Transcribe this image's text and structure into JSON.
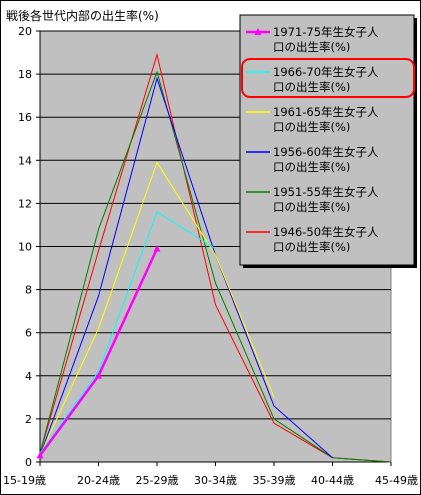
{
  "chart_data": {
    "type": "line",
    "title": "戦後各世代内部の出生率(%)",
    "categories": [
      "15-19歳",
      "20-24歳",
      "25-29歳",
      "30-34歳",
      "35-39歳",
      "40-44歳",
      "45-49歳"
    ],
    "ylim": [
      0,
      20
    ],
    "yticks": [
      0,
      2,
      4,
      6,
      8,
      10,
      12,
      14,
      16,
      18,
      20
    ],
    "grid": true,
    "legend_position": "top-right",
    "series": [
      {
        "name": "1971-75年生女子人口の出生率(%)",
        "color": "#ff00ff",
        "marker": "triangle",
        "values": [
          0.3,
          4.0,
          9.9,
          null,
          null,
          null,
          null
        ]
      },
      {
        "name": "1966-70年生女子人口の出生率(%)",
        "color": "#00ffff",
        "marker": "none",
        "highlighted": true,
        "values": [
          0.4,
          4.2,
          11.6,
          9.9,
          null,
          null,
          null
        ]
      },
      {
        "name": "1961-65年生女子人口の出生率(%)",
        "color": "#ffff00",
        "marker": "none",
        "values": [
          0.3,
          6.2,
          13.9,
          9.6,
          3.0,
          null,
          null
        ]
      },
      {
        "name": "1956-60年生女子人口の出生率(%)",
        "color": "#0000ff",
        "marker": "none",
        "values": [
          0.3,
          7.7,
          17.8,
          9.6,
          2.6,
          0.2,
          null
        ]
      },
      {
        "name": "1951-55年生女子人口の出生率(%)",
        "color": "#008000",
        "marker": "none",
        "values": [
          0.4,
          10.8,
          18.1,
          8.3,
          2.0,
          0.2,
          0.0
        ]
      },
      {
        "name": "1946-50年生女子人口の出生率(%)",
        "color": "#ff0000",
        "marker": "none",
        "values": [
          0.4,
          9.8,
          18.9,
          7.3,
          1.8,
          0.2,
          0.0
        ]
      }
    ],
    "highlight_color": "#ff0000"
  }
}
